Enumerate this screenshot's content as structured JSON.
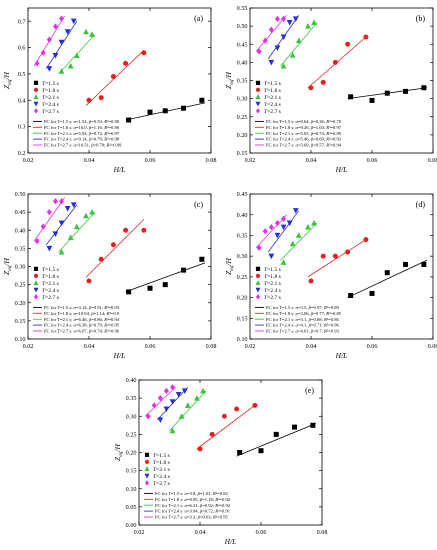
{
  "figure": {
    "shared": {
      "ylabel": "Z_eq/H",
      "xlabel": "H/L",
      "legend_names": [
        "T=1.5 s",
        "T=1.8 s",
        "T=2.1 s",
        "T=2.4 s",
        "T=2.7 s"
      ],
      "series_colors": [
        "#000000",
        "#e8211f",
        "#39c53a",
        "#2630d6",
        "#e232e6"
      ],
      "series_markers": [
        "square",
        "circle",
        "triangle-up",
        "triangle-down",
        "diamond"
      ]
    }
  },
  "chart_data": [
    {
      "type": "scatter",
      "panel_label": "(a)",
      "xlabel": "H/L",
      "ylabel": "Z_eq/H",
      "xlim": [
        0.02,
        0.08
      ],
      "ylim": [
        0.2,
        0.75
      ],
      "xticks": [
        "0.02",
        "0.04",
        "0.06",
        "0.08"
      ],
      "yticks": [
        "0.2",
        "0.3",
        "0.4",
        "0.5",
        "0.6",
        "0.7"
      ],
      "yticks_values": [
        0.2,
        0.3,
        0.4,
        0.5,
        0.6,
        0.7
      ],
      "series": [
        {
          "name": "T=1.5 s",
          "x": [
            0.053,
            0.06,
            0.065,
            0.071,
            0.077
          ],
          "y": [
            0.325,
            0.355,
            0.36,
            0.37,
            0.4
          ],
          "fit": [
            [
              0.052,
              0.325
            ],
            [
              0.078,
              0.39
            ]
          ]
        },
        {
          "name": "T=1.8 s",
          "x": [
            0.04,
            0.044,
            0.048,
            0.052,
            0.058
          ],
          "y": [
            0.4,
            0.41,
            0.49,
            0.54,
            0.58
          ],
          "fit": [
            [
              0.039,
              0.38
            ],
            [
              0.058,
              0.59
            ]
          ]
        },
        {
          "name": "T=2.1 s",
          "x": [
            0.031,
            0.034,
            0.036,
            0.039,
            0.041
          ],
          "y": [
            0.51,
            0.53,
            0.57,
            0.66,
            0.65
          ],
          "fit": [
            [
              0.03,
              0.5
            ],
            [
              0.042,
              0.65
            ]
          ]
        },
        {
          "name": "T=2.4 s",
          "x": [
            0.027,
            0.029,
            0.031,
            0.033,
            0.035
          ],
          "y": [
            0.52,
            0.57,
            0.62,
            0.66,
            0.7
          ],
          "fit": [
            [
              0.026,
              0.52
            ],
            [
              0.036,
              0.7
            ]
          ]
        },
        {
          "name": "T=2.7 s",
          "x": [
            0.023,
            0.025,
            0.027,
            0.029,
            0.031
          ],
          "y": [
            0.54,
            0.58,
            0.63,
            0.68,
            0.71
          ],
          "fit": [
            [
              0.022,
              0.53
            ],
            [
              0.032,
              0.72
            ]
          ]
        }
      ],
      "fit_labels": [
        "FC for T=1.5 s: α=1.54, β=0.53; R²=0.90",
        "FC for T=1.8 s: α=16.0, β=1.16; R²=0.96",
        "FC for T=2.1 s: α=5.94, β=0.72; R²=0.97",
        "FC for T=2.4 s: α=9.14, β=0.79; R²=0.98",
        "FC for T=2.7 s: α=10.51, β=0.79; R²=0.99"
      ]
    },
    {
      "type": "scatter",
      "panel_label": "(b)",
      "xlabel": "H/L",
      "ylabel": "Z_eq/H",
      "xlim": [
        0.02,
        0.08
      ],
      "ylim": [
        0.15,
        0.55
      ],
      "xticks": [
        "0.02",
        "0.04",
        "0.06",
        "0.08"
      ],
      "yticks": [
        "0.15",
        "0.20",
        "0.25",
        "0.30",
        "0.35",
        "0.40",
        "0.45",
        "0.50",
        "0.55"
      ],
      "yticks_values": [
        0.15,
        0.2,
        0.25,
        0.3,
        0.35,
        0.4,
        0.45,
        0.5,
        0.55
      ],
      "series": [
        {
          "name": "T=1.5 s",
          "x": [
            0.053,
            0.06,
            0.065,
            0.071,
            0.077
          ],
          "y": [
            0.305,
            0.295,
            0.315,
            0.32,
            0.33
          ],
          "fit": [
            [
              0.052,
              0.3
            ],
            [
              0.078,
              0.33
            ]
          ]
        },
        {
          "name": "T=1.8 s",
          "x": [
            0.04,
            0.044,
            0.048,
            0.052,
            0.058
          ],
          "y": [
            0.33,
            0.345,
            0.4,
            0.45,
            0.47
          ],
          "fit": [
            [
              0.039,
              0.33
            ],
            [
              0.058,
              0.47
            ]
          ]
        },
        {
          "name": "T=2.1 s",
          "x": [
            0.031,
            0.034,
            0.036,
            0.039,
            0.041
          ],
          "y": [
            0.39,
            0.42,
            0.46,
            0.5,
            0.51
          ],
          "fit": [
            [
              0.03,
              0.39
            ],
            [
              0.042,
              0.51
            ]
          ]
        },
        {
          "name": "T=2.4 s",
          "x": [
            0.027,
            0.029,
            0.031,
            0.033,
            0.035
          ],
          "y": [
            0.4,
            0.44,
            0.47,
            0.51,
            0.52
          ],
          "fit": [
            [
              0.026,
              0.41
            ],
            [
              0.036,
              0.53
            ]
          ]
        },
        {
          "name": "T=2.7 s",
          "x": [
            0.023,
            0.025,
            0.027,
            0.029,
            0.031
          ],
          "y": [
            0.43,
            0.46,
            0.49,
            0.52,
            0.52
          ],
          "fit": [
            [
              0.022,
              0.43
            ],
            [
              0.032,
              0.53
            ]
          ]
        }
      ],
      "fit_labels": [
        "FC for T=1.5 s: α=0.64, β=0.26; R²=0.70",
        "FC for T=1.8 s: α=9.26, β=1.04; R²=0.97",
        "FC for T=2.1 s: α=5.05, β=0.74; R²=0.89",
        "FC for T=2.4 s: α=5.46, β=0.69; R²=0.93",
        "FC for T=2.7 s: α=3.69, β=0.57; R²=0.94"
      ]
    },
    {
      "type": "scatter",
      "panel_label": "(c)",
      "xlabel": "H/L",
      "ylabel": "Z_eq/H",
      "xlim": [
        0.02,
        0.08
      ],
      "ylim": [
        0.1,
        0.5
      ],
      "xticks": [
        "0.02",
        "0.04",
        "0.06",
        "0.08"
      ],
      "yticks": [
        "0.10",
        "0.15",
        "0.20",
        "0.25",
        "0.30",
        "0.35",
        "0.40",
        "0.45",
        "0.50"
      ],
      "yticks_values": [
        0.1,
        0.15,
        0.2,
        0.25,
        0.3,
        0.35,
        0.4,
        0.45,
        0.5
      ],
      "series": [
        {
          "name": "T=1.5 s",
          "x": [
            0.053,
            0.06,
            0.065,
            0.071,
            0.077
          ],
          "y": [
            0.23,
            0.24,
            0.25,
            0.29,
            0.32
          ],
          "fit": [
            [
              0.052,
              0.23
            ],
            [
              0.078,
              0.31
            ]
          ]
        },
        {
          "name": "T=1.8 s",
          "x": [
            0.04,
            0.044,
            0.048,
            0.052,
            0.058
          ],
          "y": [
            0.26,
            0.32,
            0.36,
            0.4,
            0.4
          ],
          "fit": [
            [
              0.039,
              0.27
            ],
            [
              0.058,
              0.43
            ]
          ]
        },
        {
          "name": "T=2.1 s",
          "x": [
            0.031,
            0.034,
            0.036,
            0.039,
            0.041
          ],
          "y": [
            0.34,
            0.38,
            0.41,
            0.44,
            0.45
          ],
          "fit": [
            [
              0.03,
              0.34
            ],
            [
              0.042,
              0.45
            ]
          ]
        },
        {
          "name": "T=2.4 s",
          "x": [
            0.027,
            0.029,
            0.031,
            0.033,
            0.035
          ],
          "y": [
            0.35,
            0.39,
            0.42,
            0.46,
            0.47
          ],
          "fit": [
            [
              0.026,
              0.36
            ],
            [
              0.036,
              0.47
            ]
          ]
        },
        {
          "name": "T=2.7 s",
          "x": [
            0.023,
            0.025,
            0.027,
            0.029,
            0.031
          ],
          "y": [
            0.37,
            0.41,
            0.45,
            0.48,
            0.48
          ],
          "fit": [
            [
              0.022,
              0.37
            ],
            [
              0.032,
              0.49
            ]
          ]
        }
      ],
      "fit_labels": [
        "FC for T=1.5 s: α=3.14, β=0.91; R²=0.93",
        "FC for T=1.8 s: α=10.94, β=1.14; R²=0.9",
        "FC for T=2.1 s: α=6.46, β=0.86; R²=0.94",
        "FC for T=2.4 s: α=6.38, β=0.79; R²=0.95",
        "FC for T=2.7 s: α=6.07, β=0.74; R²=0.96"
      ]
    },
    {
      "type": "scatter",
      "panel_label": "(d)",
      "xlabel": "H/L",
      "ylabel": "Z_eq/H",
      "xlim": [
        0.02,
        0.08
      ],
      "ylim": [
        0.1,
        0.45
      ],
      "xticks": [
        "0.02",
        "0.04",
        "0.06",
        "0.08"
      ],
      "yticks": [
        "0.10",
        "0.15",
        "0.20",
        "0.25",
        "0.30",
        "0.35",
        "0.40",
        "0.45"
      ],
      "yticks_values": [
        0.1,
        0.15,
        0.2,
        0.25,
        0.3,
        0.35,
        0.4,
        0.45
      ],
      "series": [
        {
          "name": "T=1.5 s",
          "x": [
            0.053,
            0.06,
            0.065,
            0.071,
            0.077
          ],
          "y": [
            0.205,
            0.21,
            0.26,
            0.28,
            0.28
          ],
          "fit": [
            [
              0.052,
              0.2
            ],
            [
              0.078,
              0.29
            ]
          ]
        },
        {
          "name": "T=1.8 s",
          "x": [
            0.04,
            0.044,
            0.048,
            0.052,
            0.058
          ],
          "y": [
            0.24,
            0.3,
            0.3,
            0.31,
            0.34
          ],
          "fit": [
            [
              0.039,
              0.25
            ],
            [
              0.058,
              0.34
            ]
          ]
        },
        {
          "name": "T=2.1 s",
          "x": [
            0.031,
            0.034,
            0.036,
            0.039,
            0.041
          ],
          "y": [
            0.285,
            0.33,
            0.35,
            0.37,
            0.38
          ],
          "fit": [
            [
              0.03,
              0.29
            ],
            [
              0.042,
              0.38
            ]
          ]
        },
        {
          "name": "T=2.4 s",
          "x": [
            0.027,
            0.029,
            0.031,
            0.033,
            0.035
          ],
          "y": [
            0.3,
            0.35,
            0.37,
            0.38,
            0.41
          ],
          "fit": [
            [
              0.026,
              0.31
            ],
            [
              0.036,
              0.41
            ]
          ]
        },
        {
          "name": "T=2.7 s",
          "x": [
            0.023,
            0.025,
            0.027,
            0.029,
            0.031
          ],
          "y": [
            0.32,
            0.36,
            0.37,
            0.38,
            0.39
          ],
          "fit": [
            [
              0.022,
              0.32
            ],
            [
              0.032,
              0.4
            ]
          ]
        }
      ],
      "fit_labels": [
        "FC for T=1.5 s: α=3.5, β=0.97; R²=0.89",
        "FC for T=1.8 s: α=3.06, β=0.77; R²=0.85",
        "FC for T=2.1 s: α=3.1, β=0.68; R²=0.86",
        "FC for T=2.4 s: α=4.1, β=0.71; R²=0.96",
        "FC for T=2.7 s: α=4.61, β=0.7; R²=0.93"
      ]
    },
    {
      "type": "scatter",
      "panel_label": "(e)",
      "xlabel": "H/L",
      "ylabel": "Z_eq/H",
      "xlim": [
        0.02,
        0.08
      ],
      "ylim": [
        0.0,
        0.4
      ],
      "xticks": [
        "0.02",
        "0.04",
        "0.06",
        "0.08"
      ],
      "yticks": [
        "0.00",
        "0.05",
        "0.10",
        "0.15",
        "0.20",
        "0.25",
        "0.30",
        "0.35",
        "0.40"
      ],
      "yticks_values": [
        0.0,
        0.05,
        0.1,
        0.15,
        0.2,
        0.25,
        0.3,
        0.35,
        0.4
      ],
      "series": [
        {
          "name": "T=1.5 s",
          "x": [
            0.053,
            0.06,
            0.065,
            0.071,
            0.077
          ],
          "y": [
            0.2,
            0.205,
            0.25,
            0.27,
            0.275
          ],
          "fit": [
            [
              0.052,
              0.19
            ],
            [
              0.078,
              0.28
            ]
          ]
        },
        {
          "name": "T=1.8 s",
          "x": [
            0.04,
            0.044,
            0.048,
            0.052,
            0.058
          ],
          "y": [
            0.21,
            0.25,
            0.3,
            0.32,
            0.33
          ],
          "fit": [
            [
              0.039,
              0.21
            ],
            [
              0.058,
              0.33
            ]
          ]
        },
        {
          "name": "T=2.1 s",
          "x": [
            0.031,
            0.034,
            0.036,
            0.039,
            0.041
          ],
          "y": [
            0.26,
            0.3,
            0.33,
            0.35,
            0.37
          ],
          "fit": [
            [
              0.03,
              0.26
            ],
            [
              0.042,
              0.37
            ]
          ]
        },
        {
          "name": "T=2.4 s",
          "x": [
            0.027,
            0.029,
            0.031,
            0.033,
            0.035
          ],
          "y": [
            0.29,
            0.32,
            0.34,
            0.36,
            0.37
          ],
          "fit": [
            [
              0.026,
              0.29
            ],
            [
              0.036,
              0.38
            ]
          ]
        },
        {
          "name": "T=2.7 s",
          "x": [
            0.023,
            0.025,
            0.027,
            0.029,
            0.031
          ],
          "y": [
            0.3,
            0.33,
            0.35,
            0.37,
            0.38
          ],
          "fit": [
            [
              0.022,
              0.3
            ],
            [
              0.032,
              0.38
            ]
          ]
        }
      ],
      "fit_labels": [
        "FC for T=1.5 s: α=3.8, β=1.01; R²=0.82",
        "FC for T=1.8 s: α=9.95, β=1.18; R²=0.92",
        "FC for T=2.1 s: α=6.21, β=0.92; R²=0.92",
        "FC for T=2.4 s: α=3.94, β=0.72; R²=0.91",
        "FC for T=2.7 s: α=3.3, β=0.63; R²=0.95"
      ]
    }
  ]
}
